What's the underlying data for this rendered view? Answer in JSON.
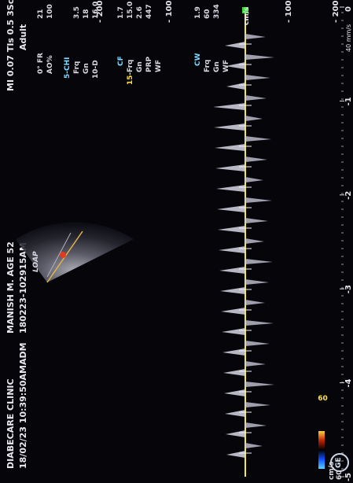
{
  "header": {
    "clinic": "DIABECARE CLINIC",
    "datetime": "18/02/23 10:39:50AM",
    "patient": "MANISH M. AGE 52",
    "adm_label": "ADM",
    "adm_id": "180223-102915AM",
    "mi_tis": "MI 0.07  TIs 0.5  3Sc",
    "mode": "Adult",
    "logo": "GE"
  },
  "image_params": {
    "fr_label": "0° FR",
    "fr_value": "21",
    "ao_label": "AO%",
    "ao_value": "100",
    "chi_label": "5-CHI",
    "frq_label": "Frq",
    "frq_value": "3.5",
    "gn_label": "Gn",
    "gn_value": "18",
    "d_label": "10-D",
    "d_value": "16.0"
  },
  "cf_params": {
    "title": "CF",
    "frq_label": "Frq",
    "frq_value": "1.7",
    "gn_label": "Gn",
    "gn_value": "15.0",
    "prf_label": "PRP",
    "prf_value": "2.6",
    "wf_label": "WF",
    "wf_value": "447",
    "depth_marker": "15-"
  },
  "cw_params": {
    "title": "CW",
    "frq_label": "Frq",
    "frq_value": "1.9",
    "gn_label": "Gn",
    "gn_value": "60",
    "wf_label": "WF",
    "wf_value": "334"
  },
  "color_bar": {
    "top": "60",
    "bottom": "60",
    "unit": "cm/s"
  },
  "view_label": "LOAP",
  "doppler": {
    "velocity_ticks": [
      "200",
      "100",
      "100",
      "200"
    ],
    "baseline_unit": "cm/s",
    "unit_right": "cm/s",
    "time_ticks": [
      "-5",
      "-4",
      "-3",
      "-2",
      "-1",
      "0"
    ],
    "sweep": "40 mm/s"
  },
  "colors": {
    "baseline": "#f2e84a",
    "marker": "#3ddc3d",
    "background": "#05050a"
  }
}
